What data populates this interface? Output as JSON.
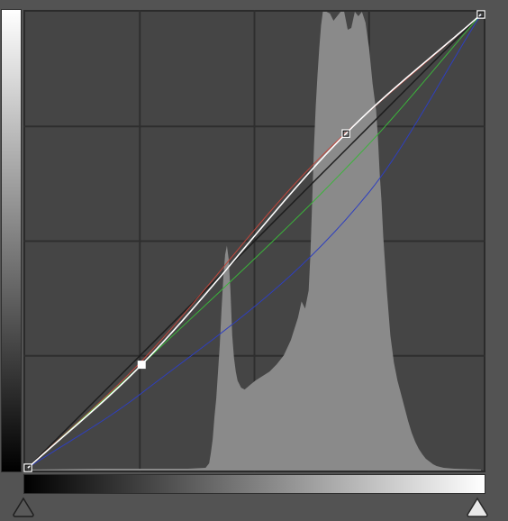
{
  "colors": {
    "background": "#535353",
    "graph_bg": "#454545",
    "grid": "#2e2e2e",
    "histogram": "#8a8a8a",
    "rgb_curve": "#ffffff",
    "red_curve": "#c0463c",
    "green_curve": "#3bb33b",
    "blue_curve": "#2e3fbf",
    "baseline": "#1c1c1c"
  },
  "grid_divisions": 4,
  "icons": {
    "black_point_slider": "black-point-triangle",
    "white_point_slider": "white-point-triangle"
  },
  "curves": {
    "rgb_points": [
      [
        0,
        0
      ],
      [
        64,
        58
      ],
      [
        179,
        188
      ],
      [
        255,
        255
      ]
    ],
    "selected_point_index": 1,
    "red_points": [
      [
        0,
        0
      ],
      [
        64,
        60
      ],
      [
        160,
        170
      ],
      [
        255,
        255
      ]
    ],
    "green_points": [
      [
        0,
        0
      ],
      [
        64,
        58
      ],
      [
        190,
        180
      ],
      [
        255,
        255
      ]
    ],
    "blue_points": [
      [
        0,
        0
      ],
      [
        64,
        42
      ],
      [
        192,
        155
      ],
      [
        255,
        255
      ]
    ]
  },
  "histogram": [
    [
      0,
      1
    ],
    [
      40,
      2
    ],
    [
      60,
      2
    ],
    [
      90,
      2
    ],
    [
      100,
      3
    ],
    [
      102,
      8
    ],
    [
      103,
      20
    ],
    [
      104,
      35
    ],
    [
      105,
      60
    ],
    [
      106,
      80
    ],
    [
      107,
      110
    ],
    [
      108,
      140
    ],
    [
      109,
      180
    ],
    [
      110,
      215
    ],
    [
      111,
      240
    ],
    [
      112,
      250
    ],
    [
      113,
      235
    ],
    [
      114,
      200
    ],
    [
      115,
      150
    ],
    [
      116,
      125
    ],
    [
      117,
      110
    ],
    [
      118,
      100
    ],
    [
      120,
      92
    ],
    [
      122,
      90
    ],
    [
      125,
      95
    ],
    [
      128,
      100
    ],
    [
      132,
      105
    ],
    [
      136,
      110
    ],
    [
      140,
      118
    ],
    [
      144,
      128
    ],
    [
      148,
      145
    ],
    [
      152,
      170
    ],
    [
      154,
      188
    ],
    [
      156,
      180
    ],
    [
      158,
      200
    ],
    [
      159,
      240
    ],
    [
      160,
      300
    ],
    [
      161,
      360
    ],
    [
      162,
      405
    ],
    [
      163,
      440
    ],
    [
      164,
      470
    ],
    [
      165,
      495
    ],
    [
      166,
      510
    ],
    [
      168,
      510
    ],
    [
      170,
      508
    ],
    [
      172,
      500
    ],
    [
      174,
      505
    ],
    [
      176,
      510
    ],
    [
      178,
      510
    ],
    [
      180,
      490
    ],
    [
      182,
      492
    ],
    [
      184,
      510
    ],
    [
      186,
      505
    ],
    [
      188,
      510
    ],
    [
      190,
      498
    ],
    [
      192,
      470
    ],
    [
      194,
      430
    ],
    [
      196,
      400
    ],
    [
      197,
      370
    ],
    [
      198,
      330
    ],
    [
      199,
      300
    ],
    [
      200,
      260
    ],
    [
      202,
      200
    ],
    [
      204,
      150
    ],
    [
      206,
      120
    ],
    [
      208,
      100
    ],
    [
      210,
      85
    ],
    [
      212,
      70
    ],
    [
      214,
      55
    ],
    [
      216,
      42
    ],
    [
      218,
      32
    ],
    [
      220,
      24
    ],
    [
      222,
      18
    ],
    [
      224,
      13
    ],
    [
      226,
      10
    ],
    [
      228,
      7
    ],
    [
      230,
      5
    ],
    [
      234,
      3
    ],
    [
      240,
      2
    ],
    [
      255,
      1
    ]
  ]
}
